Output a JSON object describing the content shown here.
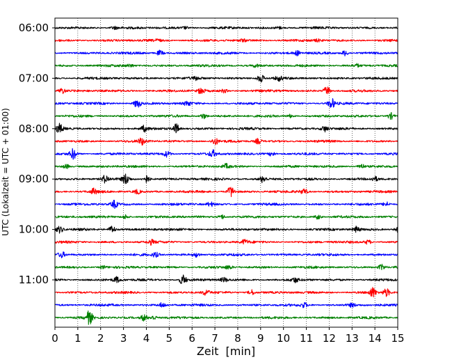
{
  "chart_data": {
    "type": "line",
    "title": "",
    "xlabel": "Zeit  [min]",
    "ylabel": "UTC (Lokalzeit = UTC + 01:00)",
    "xlim": [
      0,
      15
    ],
    "x_ticks": [
      0,
      1,
      2,
      3,
      4,
      5,
      6,
      7,
      8,
      9,
      10,
      11,
      12,
      13,
      14,
      15
    ],
    "y_tick_labels": [
      "06:00",
      "07:00",
      "08:00",
      "09:00",
      "10:00",
      "11:00"
    ],
    "trace_interval_minutes": 15,
    "grid": "vertical dotted lines at each minute",
    "trace_colors": [
      "#000000",
      "#ff0000",
      "#0000ff",
      "#008000"
    ],
    "traces": [
      {
        "start": "06:00",
        "color": "#000000",
        "bursts": [
          [
            2.6,
            0.25
          ],
          [
            5.7,
            0.2
          ],
          [
            9.8,
            0.2
          ]
        ]
      },
      {
        "start": "06:15",
        "color": "#ff0000",
        "bursts": [
          [
            4.5,
            0.2
          ],
          [
            8.2,
            0.2
          ],
          [
            11.5,
            0.2
          ]
        ]
      },
      {
        "start": "06:30",
        "color": "#0000ff",
        "bursts": [
          [
            4.6,
            0.5
          ],
          [
            10.6,
            0.4
          ],
          [
            12.7,
            0.5
          ]
        ]
      },
      {
        "start": "06:45",
        "color": "#008000",
        "bursts": [
          [
            3.3,
            0.25
          ],
          [
            8.8,
            0.25
          ],
          [
            13.2,
            0.25
          ]
        ]
      },
      {
        "start": "07:00",
        "color": "#000000",
        "bursts": [
          [
            6.2,
            0.3
          ],
          [
            9.0,
            0.7
          ],
          [
            9.8,
            0.4
          ]
        ]
      },
      {
        "start": "07:15",
        "color": "#ff0000",
        "bursts": [
          [
            0.3,
            0.5
          ],
          [
            6.4,
            0.6
          ],
          [
            11.9,
            0.8
          ],
          [
            7.4,
            0.3
          ]
        ]
      },
      {
        "start": "07:30",
        "color": "#0000ff",
        "bursts": [
          [
            3.6,
            0.8
          ],
          [
            5.8,
            0.4
          ],
          [
            12.1,
            0.9
          ]
        ]
      },
      {
        "start": "07:45",
        "color": "#008000",
        "bursts": [
          [
            6.5,
            0.5
          ],
          [
            14.7,
            0.6
          ],
          [
            10.3,
            0.3
          ]
        ]
      },
      {
        "start": "08:00",
        "color": "#000000",
        "bursts": [
          [
            0.2,
            0.8
          ],
          [
            3.9,
            0.5
          ],
          [
            5.3,
            0.9
          ],
          [
            11.8,
            0.5
          ]
        ]
      },
      {
        "start": "08:15",
        "color": "#ff0000",
        "bursts": [
          [
            3.8,
            0.6
          ],
          [
            7.0,
            0.6
          ],
          [
            8.9,
            0.5
          ]
        ]
      },
      {
        "start": "08:30",
        "color": "#0000ff",
        "bursts": [
          [
            0.8,
            1.0
          ],
          [
            4.9,
            0.5
          ],
          [
            6.9,
            0.6
          ],
          [
            9.5,
            0.4
          ]
        ]
      },
      {
        "start": "08:45",
        "color": "#008000",
        "bursts": [
          [
            0.5,
            0.4
          ],
          [
            7.5,
            0.4
          ],
          [
            13.4,
            0.5
          ]
        ]
      },
      {
        "start": "09:00",
        "color": "#000000",
        "bursts": [
          [
            2.2,
            0.7
          ],
          [
            3.1,
            0.9
          ],
          [
            4.0,
            0.7
          ],
          [
            9.1,
            0.6
          ],
          [
            14.0,
            0.4
          ]
        ]
      },
      {
        "start": "09:15",
        "color": "#ff0000",
        "bursts": [
          [
            1.7,
            0.5
          ],
          [
            7.7,
            1.0
          ],
          [
            10.9,
            0.5
          ],
          [
            3.6,
            0.4
          ]
        ]
      },
      {
        "start": "09:30",
        "color": "#0000ff",
        "bursts": [
          [
            2.6,
            0.7
          ],
          [
            6.8,
            0.4
          ],
          [
            14.5,
            0.4
          ]
        ]
      },
      {
        "start": "09:45",
        "color": "#008000",
        "bursts": [
          [
            3.1,
            0.4
          ],
          [
            7.3,
            0.4
          ],
          [
            11.5,
            0.4
          ]
        ]
      },
      {
        "start": "10:00",
        "color": "#000000",
        "bursts": [
          [
            0.2,
            0.6
          ],
          [
            2.5,
            0.7
          ],
          [
            13.2,
            0.5
          ],
          [
            15.0,
            0.5
          ]
        ]
      },
      {
        "start": "10:15",
        "color": "#ff0000",
        "bursts": [
          [
            4.2,
            0.4
          ],
          [
            8.3,
            0.4
          ],
          [
            13.7,
            0.4
          ]
        ]
      },
      {
        "start": "10:30",
        "color": "#0000ff",
        "bursts": [
          [
            0.3,
            0.5
          ],
          [
            4.4,
            0.4
          ],
          [
            6.2,
            0.4
          ]
        ]
      },
      {
        "start": "10:45",
        "color": "#008000",
        "bursts": [
          [
            2.1,
            0.3
          ],
          [
            14.3,
            0.5
          ],
          [
            7.6,
            0.3
          ]
        ]
      },
      {
        "start": "11:00",
        "color": "#000000",
        "bursts": [
          [
            2.7,
            0.5
          ],
          [
            5.6,
            0.9
          ],
          [
            7.4,
            0.4
          ],
          [
            10.5,
            0.4
          ]
        ]
      },
      {
        "start": "11:15",
        "color": "#ff0000",
        "bursts": [
          [
            6.6,
            0.5
          ],
          [
            8.6,
            0.5
          ],
          [
            13.9,
            0.9
          ],
          [
            14.5,
            0.7
          ]
        ]
      },
      {
        "start": "11:30",
        "color": "#0000ff",
        "bursts": [
          [
            4.7,
            0.4
          ],
          [
            10.9,
            0.4
          ],
          [
            13.0,
            0.3
          ]
        ]
      },
      {
        "start": "11:45",
        "color": "#008000",
        "bursts": [
          [
            1.5,
            1.2
          ],
          [
            3.9,
            0.6
          ],
          [
            4.3,
            0.4
          ]
        ]
      }
    ]
  }
}
